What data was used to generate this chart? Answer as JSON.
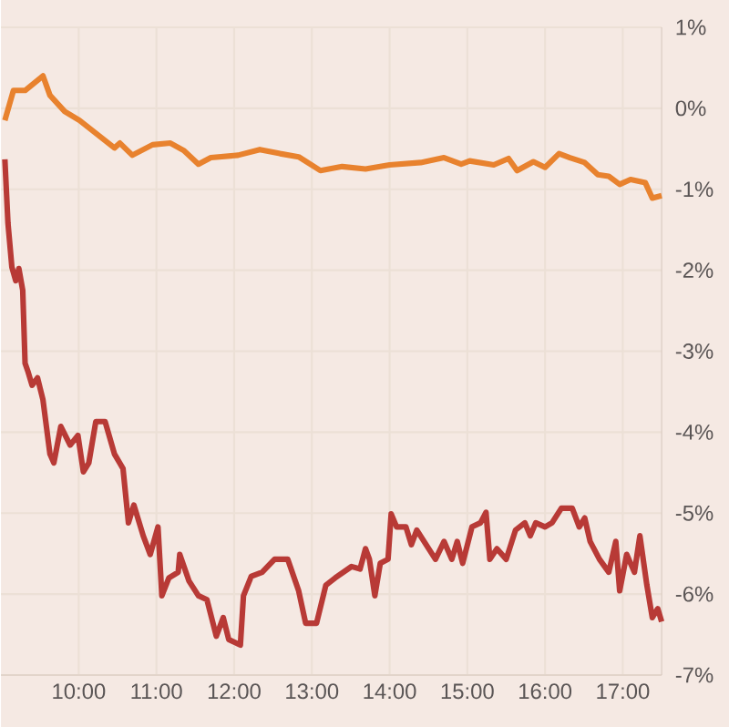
{
  "chart_data": {
    "type": "line",
    "xlim": [
      9,
      17.5
    ],
    "ylim": [
      -7,
      1
    ],
    "xticks": [
      {
        "value": 10,
        "label": "10:00"
      },
      {
        "value": 11,
        "label": "11:00"
      },
      {
        "value": 12,
        "label": "12:00"
      },
      {
        "value": 13,
        "label": "13:00"
      },
      {
        "value": 14,
        "label": "14:00"
      },
      {
        "value": 15,
        "label": "15:00"
      },
      {
        "value": 16,
        "label": "16:00"
      },
      {
        "value": 17,
        "label": "17:00"
      }
    ],
    "yticks": [
      {
        "value": 1,
        "label": "1%"
      },
      {
        "value": 0,
        "label": "0%"
      },
      {
        "value": -1,
        "label": "-1%"
      },
      {
        "value": -2,
        "label": "-2%"
      },
      {
        "value": -3,
        "label": "-3%"
      },
      {
        "value": -4,
        "label": "-4%"
      },
      {
        "value": -5,
        "label": "-5%"
      },
      {
        "value": -6,
        "label": "-6%"
      },
      {
        "value": -7,
        "label": "-7%"
      }
    ],
    "grid": true,
    "series": [
      {
        "color": "#e8822e",
        "x": [
          9.05,
          9.16,
          9.31,
          9.54,
          9.63,
          9.82,
          10.01,
          10.17,
          10.46,
          10.53,
          10.69,
          10.95,
          11.18,
          11.35,
          11.54,
          11.7,
          12.05,
          12.33,
          12.59,
          12.83,
          13.11,
          13.39,
          13.69,
          14.0,
          14.4,
          14.7,
          14.92,
          15.03,
          15.34,
          15.53,
          15.64,
          15.85,
          16.0,
          16.18,
          16.32,
          16.51,
          16.68,
          16.82,
          16.96,
          17.1,
          17.29,
          17.38,
          17.5
        ],
        "values": [
          -0.15,
          0.22,
          0.22,
          0.4,
          0.16,
          -0.04,
          -0.15,
          -0.27,
          -0.49,
          -0.43,
          -0.58,
          -0.45,
          -0.43,
          -0.52,
          -0.69,
          -0.61,
          -0.58,
          -0.51,
          -0.56,
          -0.6,
          -0.77,
          -0.72,
          -0.75,
          -0.7,
          -0.67,
          -0.61,
          -0.69,
          -0.65,
          -0.7,
          -0.62,
          -0.77,
          -0.66,
          -0.73,
          -0.56,
          -0.61,
          -0.67,
          -0.82,
          -0.84,
          -0.94,
          -0.88,
          -0.92,
          -1.11,
          -1.08
        ]
      },
      {
        "color": "#b83a36",
        "x": [
          9.05,
          9.09,
          9.14,
          9.19,
          9.23,
          9.28,
          9.31,
          9.35,
          9.4,
          9.47,
          9.54,
          9.63,
          9.68,
          9.77,
          9.89,
          9.99,
          10.06,
          10.13,
          10.22,
          10.34,
          10.46,
          10.57,
          10.64,
          10.71,
          10.83,
          10.92,
          11.02,
          11.07,
          11.16,
          11.28,
          11.3,
          11.42,
          11.54,
          11.65,
          11.77,
          11.86,
          11.93,
          12.08,
          12.12,
          12.22,
          12.36,
          12.52,
          12.69,
          12.83,
          12.92,
          13.06,
          13.18,
          13.3,
          13.51,
          13.62,
          13.69,
          13.74,
          13.81,
          13.88,
          13.98,
          14.02,
          14.09,
          14.21,
          14.28,
          14.35,
          14.47,
          14.59,
          14.7,
          14.8,
          14.87,
          14.94,
          15.06,
          15.17,
          15.24,
          15.29,
          15.38,
          15.5,
          15.62,
          15.74,
          15.81,
          15.88,
          16.0,
          16.09,
          16.21,
          16.35,
          16.44,
          16.51,
          16.58,
          16.7,
          16.82,
          16.91,
          16.96,
          17.05,
          17.15,
          17.22,
          17.31,
          17.38,
          17.45,
          17.5
        ],
        "values": [
          -0.63,
          -1.42,
          -1.96,
          -2.13,
          -1.98,
          -2.25,
          -3.15,
          -3.26,
          -3.42,
          -3.33,
          -3.6,
          -4.27,
          -4.38,
          -3.93,
          -4.16,
          -4.04,
          -4.49,
          -4.38,
          -3.87,
          -3.87,
          -4.27,
          -4.45,
          -5.12,
          -4.9,
          -5.28,
          -5.51,
          -5.17,
          -6.02,
          -5.8,
          -5.73,
          -5.51,
          -5.84,
          -6.02,
          -6.07,
          -6.52,
          -6.29,
          -6.56,
          -6.63,
          -6.02,
          -5.78,
          -5.73,
          -5.57,
          -5.57,
          -5.96,
          -6.36,
          -6.36,
          -5.89,
          -5.8,
          -5.66,
          -5.69,
          -5.44,
          -5.57,
          -6.02,
          -5.62,
          -5.57,
          -5.01,
          -5.17,
          -5.17,
          -5.39,
          -5.21,
          -5.39,
          -5.57,
          -5.35,
          -5.57,
          -5.35,
          -5.62,
          -5.17,
          -5.12,
          -4.99,
          -5.57,
          -5.44,
          -5.57,
          -5.21,
          -5.12,
          -5.28,
          -5.12,
          -5.17,
          -5.12,
          -4.94,
          -4.94,
          -5.17,
          -5.06,
          -5.35,
          -5.57,
          -5.73,
          -5.35,
          -5.96,
          -5.51,
          -5.73,
          -5.28,
          -5.89,
          -6.29,
          -6.18,
          -6.34
        ]
      }
    ]
  }
}
